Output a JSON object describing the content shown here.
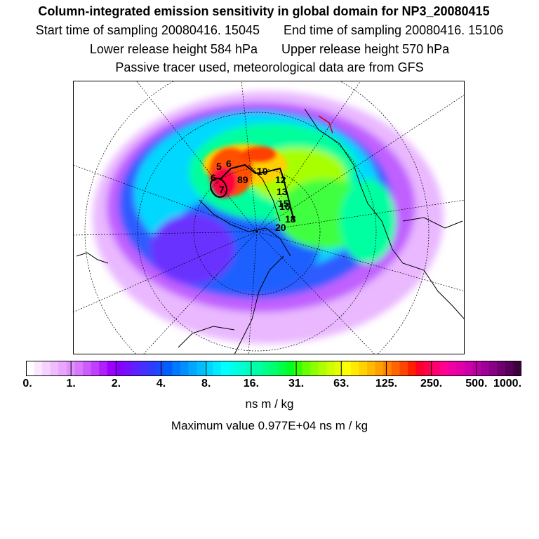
{
  "header": {
    "title": "Column-integrated emission sensitivity in global domain for NP3_20080415",
    "start_label": "Start time of sampling 20080416. 15045",
    "end_label": "End time of sampling 20080416. 15106",
    "lower_label": "Lower release height  584 hPa",
    "upper_label": "Upper release height  570 hPa",
    "tracer_label": "Passive tracer used, meteorological data are from GFS"
  },
  "map": {
    "track_labels": [
      "5",
      "6",
      "6",
      "7",
      "89",
      "10",
      "12",
      "13",
      "15",
      "16",
      "18",
      "20"
    ]
  },
  "colorbar": {
    "ticks": [
      "0.",
      "1.",
      "2.",
      "4.",
      "8.",
      "16.",
      "31.",
      "63.",
      "125.",
      "250.",
      "500.",
      "1000."
    ],
    "colors": [
      "#ffffff",
      "#fbe8ff",
      "#f5d2ff",
      "#efbcff",
      "#e9a6ff",
      "#e090ff",
      "#d878ff",
      "#cd5cff",
      "#c040ff",
      "#b020ff",
      "#9d00ff",
      "#8a00ff",
      "#7410ff",
      "#5d20ff",
      "#4630ff",
      "#2f3cff",
      "#1a4cff",
      "#0060ff",
      "#0078ff",
      "#008fff",
      "#00a6ff",
      "#00bdff",
      "#00d4ff",
      "#00ebff",
      "#00ffff",
      "#00ffea",
      "#00ffd2",
      "#00ffbb",
      "#00ffa4",
      "#00ff8c",
      "#00ff6c",
      "#00ff4c",
      "#00ff22",
      "#33ff00",
      "#66ff00",
      "#8cff00",
      "#b0ff00",
      "#ccff00",
      "#e6ff00",
      "#ffff00",
      "#ffea00",
      "#ffd200",
      "#ffb900",
      "#ffa000",
      "#ff8200",
      "#ff6400",
      "#ff4600",
      "#ff2000",
      "#ff0028",
      "#ff0050",
      "#ff0070",
      "#ff0090",
      "#f000a0",
      "#e000a8",
      "#cc00a8",
      "#b800a0",
      "#a00098",
      "#880088",
      "#700070",
      "#560058",
      "#400040"
    ],
    "unit": "ns m / kg",
    "max_value_label": "Maximum value  0.977E+04 ns m / kg"
  }
}
